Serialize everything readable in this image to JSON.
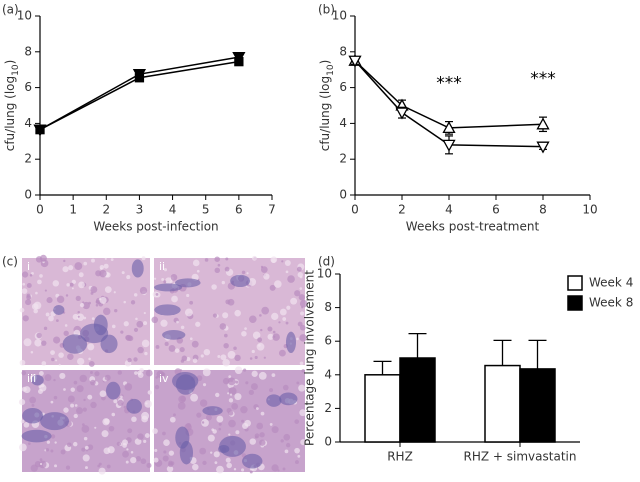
{
  "chart_data": [
    {
      "type": "line",
      "panel_label": "(a)",
      "x": [
        0,
        3,
        6
      ],
      "series": [
        {
          "color": "#000000",
          "marker": "triangle-down",
          "filled": true,
          "values": [
            3.65,
            6.75,
            7.7
          ]
        },
        {
          "color": "#000000",
          "marker": "square",
          "filled": true,
          "values": [
            3.65,
            6.55,
            7.45
          ]
        }
      ],
      "xlim": [
        0,
        7
      ],
      "xticks": [
        0,
        1,
        2,
        3,
        4,
        5,
        6,
        7
      ],
      "ylim": [
        0,
        10
      ],
      "yticks": [
        0,
        2,
        4,
        6,
        8,
        10
      ],
      "x_label": "Weeks post-infection",
      "y_label_parts": [
        "cfu/lung (log",
        "10",
        ")"
      ]
    },
    {
      "type": "line",
      "panel_label": "(b)",
      "x": [
        0,
        2,
        4,
        8
      ],
      "series": [
        {
          "color": "#000000",
          "marker": "triangle-up",
          "filled": false,
          "values": [
            7.5,
            5.0,
            3.75,
            3.95
          ],
          "errors": [
            0.2,
            0.3,
            0.35,
            0.4
          ]
        },
        {
          "color": "#000000",
          "marker": "triangle-down",
          "filled": false,
          "values": [
            7.5,
            4.6,
            2.8,
            2.7
          ],
          "errors": [
            0.2,
            0.3,
            0.5,
            0.15
          ]
        }
      ],
      "annotations": [
        {
          "text": "***",
          "x": 4
        },
        {
          "text": "***",
          "x": 8
        }
      ],
      "xlim": [
        0,
        10
      ],
      "xticks": [
        0,
        2,
        4,
        6,
        8,
        10
      ],
      "ylim": [
        0,
        10
      ],
      "yticks": [
        0,
        2,
        4,
        6,
        8,
        10
      ],
      "x_label": "Weeks post-treatment",
      "y_label_parts": [
        "cfu/lung (log",
        "10",
        ")"
      ]
    },
    {
      "type": "image",
      "panel_label": "(c)",
      "panels": [
        "i",
        "ii",
        "iii",
        "iv"
      ]
    },
    {
      "type": "bar",
      "panel_label": "(d)",
      "categories": [
        "RHZ",
        "RHZ + simvastatin"
      ],
      "series": [
        {
          "name": "Week 4",
          "color": "#ffffff",
          "values": [
            4.0,
            4.55
          ],
          "errors": [
            0.8,
            1.5
          ]
        },
        {
          "name": "Week 8",
          "color": "#000000",
          "values": [
            5.0,
            4.35
          ],
          "errors": [
            1.45,
            1.7
          ]
        }
      ],
      "ylim": [
        0,
        10
      ],
      "yticks": [
        0,
        2,
        4,
        6,
        8,
        10
      ],
      "y_label": "Percentage lung involvement",
      "legend": "upper right"
    }
  ]
}
